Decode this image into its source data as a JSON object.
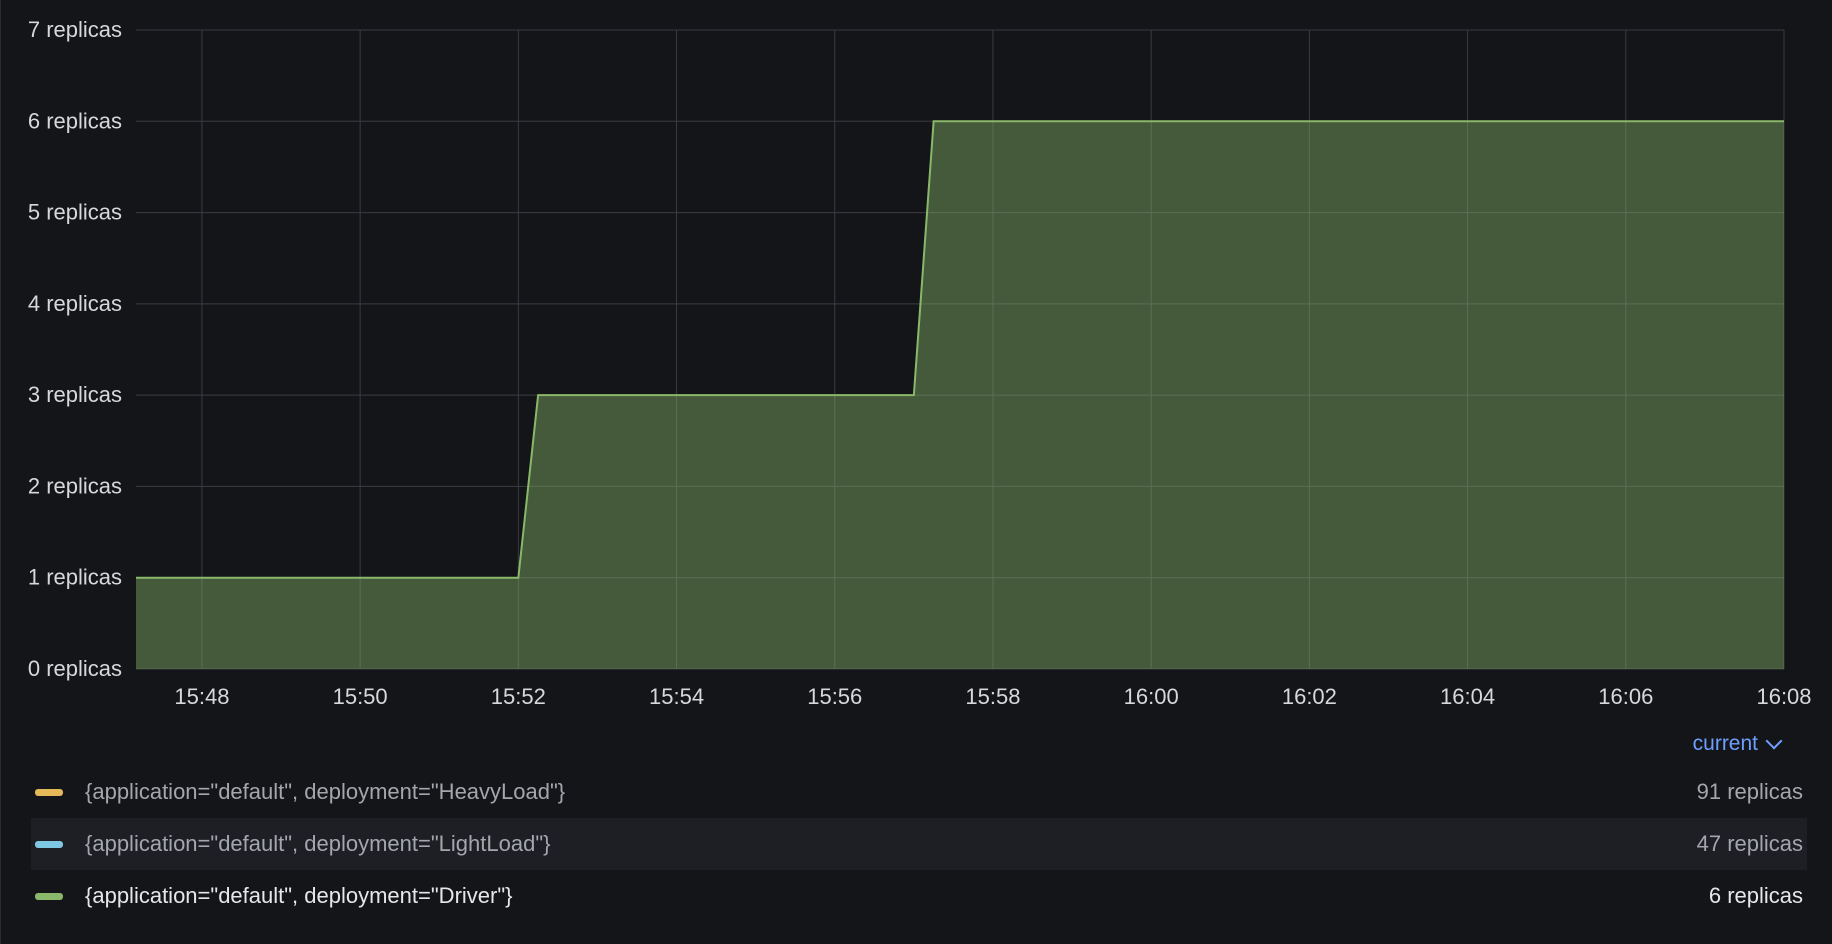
{
  "chart_data": {
    "type": "area",
    "x": [
      "15:47:10",
      "15:52:00",
      "15:52:15",
      "15:57:00",
      "15:57:15",
      "16:08:00"
    ],
    "series": [
      {
        "name": "{application=\"default\", deployment=\"Driver\"}",
        "color": "#8ab86b",
        "values": [
          1,
          1,
          3,
          3,
          6,
          6
        ]
      }
    ],
    "yticks": [
      "0 replicas",
      "1 replicas",
      "2 replicas",
      "3 replicas",
      "4 replicas",
      "5 replicas",
      "6 replicas",
      "7 replicas"
    ],
    "xticks": [
      "15:48",
      "15:50",
      "15:52",
      "15:54",
      "15:56",
      "15:58",
      "16:00",
      "16:02",
      "16:04",
      "16:06",
      "16:08"
    ],
    "ylim": [
      0,
      7
    ],
    "xlim": [
      "15:47:10",
      "16:08:00"
    ],
    "grid": true,
    "legend_position": "bottom"
  },
  "legend": {
    "header": "current",
    "items": [
      {
        "label": "{application=\"default\", deployment=\"HeavyLoad\"}",
        "value": "91 replicas",
        "color": "#e5b85a"
      },
      {
        "label": "{application=\"default\", deployment=\"LightLoad\"}",
        "value": "47 replicas",
        "color": "#7ec8e3"
      },
      {
        "label": "{application=\"default\", deployment=\"Driver\"}",
        "value": "6 replicas",
        "color": "#8ab86b"
      }
    ]
  }
}
